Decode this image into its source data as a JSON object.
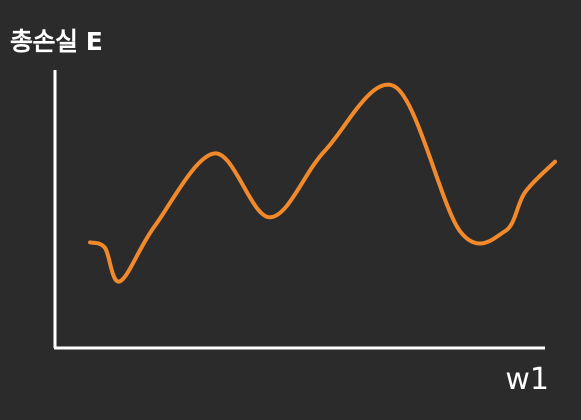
{
  "chart_data": {
    "type": "line",
    "title": "",
    "xlabel": "w1",
    "ylabel": "총손실 E",
    "xlim": [
      0,
      1
    ],
    "ylim": [
      0,
      1
    ],
    "grid": false,
    "ticks_shown": false,
    "series": [
      {
        "color": "#f28a2b",
        "x": [
          0.07,
          0.1,
          0.13,
          0.2,
          0.32,
          0.43,
          0.54,
          0.68,
          0.81,
          0.9,
          0.94,
          1.0
        ],
        "y": [
          0.38,
          0.36,
          0.24,
          0.44,
          0.7,
          0.47,
          0.71,
          0.94,
          0.42,
          0.42,
          0.56,
          0.67
        ]
      }
    ]
  },
  "colors": {
    "background": "#2b2b2b",
    "axis": "#ffffff",
    "line": "#f28a2b",
    "text": "#ffffff"
  }
}
